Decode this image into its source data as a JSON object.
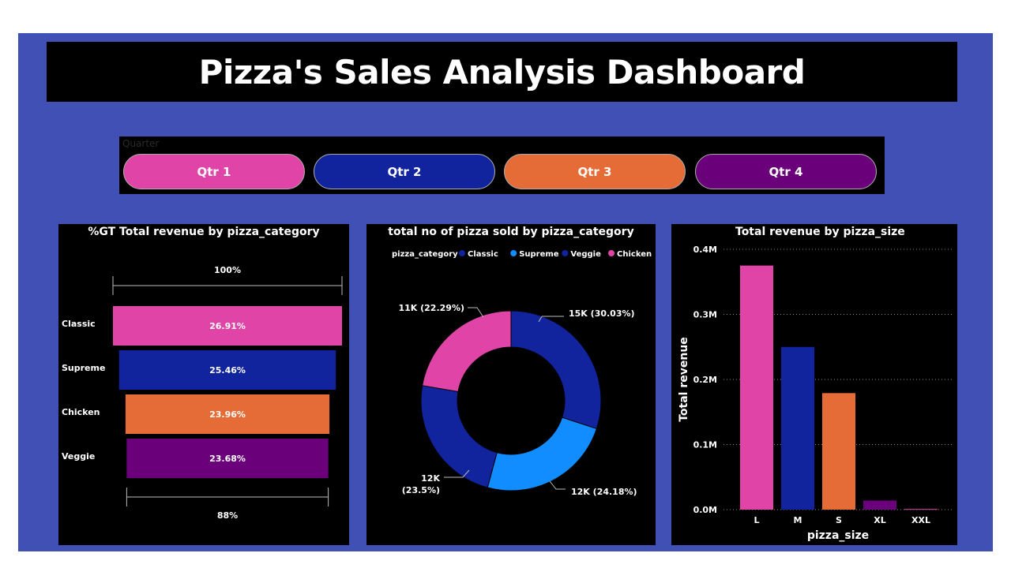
{
  "dashboard": {
    "title": "Pizza's Sales Analysis Dashboard"
  },
  "slicer": {
    "label": "Quarter",
    "items": [
      {
        "label": "Qtr 1",
        "color": "#E044A7"
      },
      {
        "label": "Qtr 2",
        "color": "#12239E"
      },
      {
        "label": "Qtr 3",
        "color": "#E66C37"
      },
      {
        "label": "Qtr 4",
        "color": "#6B007B"
      }
    ]
  },
  "chart_data": [
    {
      "type": "funnel",
      "title": "%GT Total revenue by pizza_category",
      "categories": [
        "Classic",
        "Supreme",
        "Chicken",
        "Veggie"
      ],
      "values": [
        26.91,
        25.46,
        23.96,
        23.68
      ],
      "labels": [
        "26.91%",
        "25.46%",
        "23.96%",
        "23.68%"
      ],
      "colors": [
        "#E044A7",
        "#12239E",
        "#E66C37",
        "#6B007B"
      ],
      "top_label": "100%",
      "bottom_label": "88%"
    },
    {
      "type": "donut",
      "title": "total no of pizza sold by pizza_category",
      "legend_title": "pizza_category",
      "legend": [
        {
          "name": "Classic",
          "color": "#12239E"
        },
        {
          "name": "Supreme",
          "color": "#118DFF"
        },
        {
          "name": "Veggie",
          "color": "#12239E"
        },
        {
          "name": "Chicken",
          "color": "#E044A7"
        }
      ],
      "slices": [
        {
          "name": "Classic",
          "value": 30.03,
          "label": "15K (30.03%)",
          "color": "#12239E"
        },
        {
          "name": "Supreme",
          "value": 24.18,
          "label": "12K (24.18%)",
          "color": "#118DFF"
        },
        {
          "name": "Veggie",
          "value": 23.5,
          "label": "12K",
          "label2": "(23.5%)",
          "color": "#12239E"
        },
        {
          "name": "Chicken",
          "value": 22.29,
          "label": "11K (22.29%)",
          "color": "#E044A7"
        }
      ]
    },
    {
      "type": "bar",
      "title": "Total revenue by pizza_size",
      "categories": [
        "L",
        "M",
        "S",
        "XL",
        "XXL"
      ],
      "values": [
        0.375,
        0.25,
        0.179,
        0.014,
        0.001
      ],
      "colors": [
        "#E044A7",
        "#12239E",
        "#E66C37",
        "#6B007B",
        "#E044A7"
      ],
      "xlabel": "pizza_size",
      "ylabel": "Total revenue",
      "ylim": [
        0,
        0.4
      ],
      "yticks": [
        {
          "value": 0,
          "label": "0.0M"
        },
        {
          "value": 0.1,
          "label": "0.1M"
        },
        {
          "value": 0.2,
          "label": "0.2M"
        },
        {
          "value": 0.3,
          "label": "0.3M"
        },
        {
          "value": 0.4,
          "label": "0.4M"
        }
      ],
      "grid": true
    }
  ]
}
